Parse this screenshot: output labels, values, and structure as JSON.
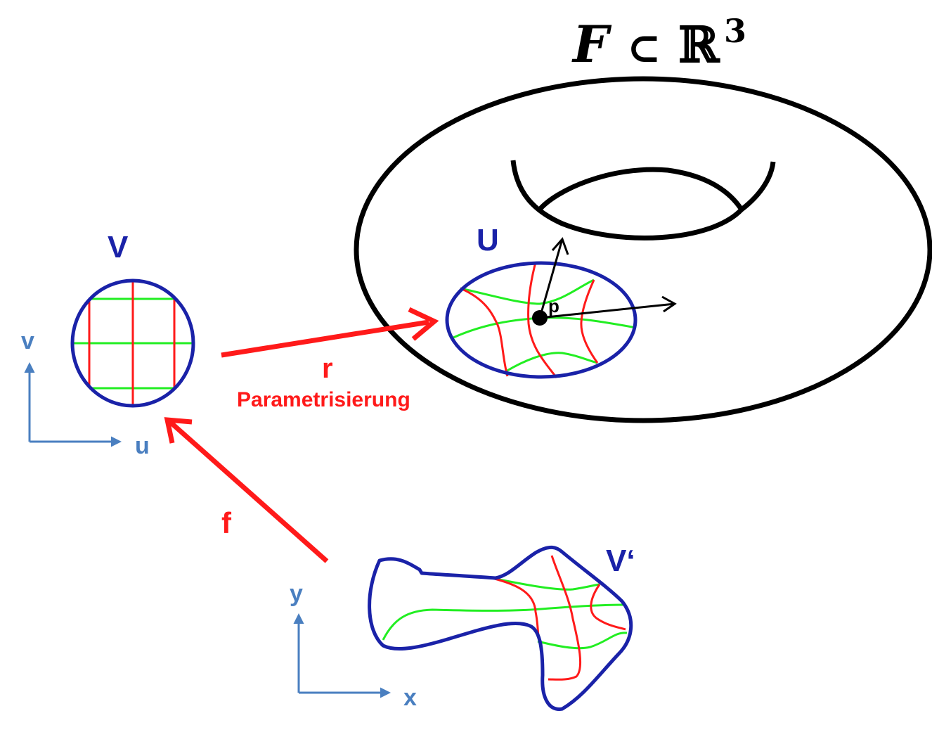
{
  "title": {
    "F": "F",
    "subset": "⊂",
    "R": "ℝ",
    "exp": "3"
  },
  "labels": {
    "V": "V",
    "U": "U",
    "Vprime": "V‘",
    "p": "p",
    "r": "r",
    "param": "Parametrisierung",
    "f": "f",
    "u": "u",
    "v": "v",
    "x": "x",
    "y": "y"
  },
  "colors": {
    "blue": "#1a22a8",
    "red": "#ff1a1a",
    "green": "#22ee22",
    "axis": "#4a7fc0",
    "black": "#000000"
  }
}
